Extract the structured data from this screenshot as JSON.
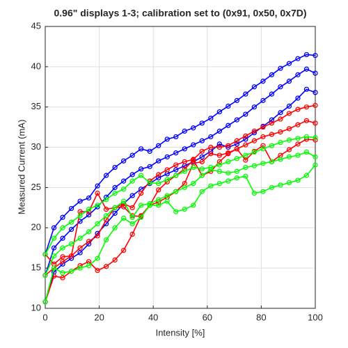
{
  "chart_data": {
    "type": "line",
    "title": "0.96\" displays 1-3; calibration set to (0x91, 0x50, 0x7D)",
    "xlabel": "Intensity [%]",
    "ylabel": "Measured Current (mA)",
    "x": [
      0,
      3.23,
      6.45,
      9.68,
      12.9,
      16.13,
      19.35,
      22.58,
      25.81,
      29.03,
      32.26,
      35.48,
      38.71,
      41.94,
      45.16,
      48.39,
      51.61,
      54.84,
      58.06,
      61.29,
      64.52,
      67.74,
      70.97,
      74.19,
      77.42,
      80.65,
      83.87,
      87.1,
      90.32,
      93.55,
      96.77,
      100
    ],
    "xlim": [
      0,
      100
    ],
    "xticks": [
      0,
      20,
      40,
      60,
      80,
      100
    ],
    "ylim": [
      10,
      45
    ],
    "yticks": [
      10,
      15,
      20,
      25,
      30,
      35,
      40,
      45
    ],
    "grid": true,
    "series": [
      {
        "color": "#0000ff",
        "values": [
          16.7,
          20,
          21.3,
          22.4,
          23.3,
          23.7,
          25.2,
          26.5,
          27.5,
          28.3,
          29.0,
          29.8,
          29.5,
          30.2,
          31.0,
          31.3,
          32.0,
          32.4,
          33.0,
          33.6,
          34.4,
          35.1,
          35.8,
          36.6,
          37.5,
          38.2,
          39.0,
          39.8,
          40.4,
          41.0,
          41.5,
          41.4
        ]
      },
      {
        "color": "#0000ff",
        "values": [
          14.1,
          17.5,
          18.7,
          19.8,
          20.8,
          21.6,
          22.6,
          23.8,
          25.0,
          25.8,
          26.6,
          27.3,
          27.6,
          28.3,
          28.8,
          29.3,
          29.8,
          30.3,
          30.8,
          31.3,
          32.0,
          32.7,
          33.4,
          34.1,
          35.0,
          35.8,
          36.6,
          37.5,
          38.2,
          39.0,
          39.7,
          39.2
        ]
      },
      {
        "color": "#0000ff",
        "values": [
          10.8,
          14.5,
          15.5,
          16.2,
          16.9,
          18.0,
          19.3,
          20.5,
          21.8,
          23.0,
          24.0,
          24.8,
          25.5,
          26.2,
          26.7,
          27.2,
          27.7,
          28.2,
          28.8,
          29.5,
          30.4,
          30.0,
          30.4,
          31.0,
          31.8,
          32.6,
          33.4,
          34.3,
          35.1,
          36.1,
          37.2,
          36.8
        ]
      },
      {
        "color": "#ff0000",
        "values": [
          14.1,
          15.0,
          15.8,
          16.5,
          17.5,
          18.3,
          19.0,
          21.0,
          22.5,
          23.0,
          22.5,
          24.3,
          25.8,
          26.6,
          27.2,
          27.8,
          28.2,
          28.5,
          29.5,
          30.0,
          30.0,
          30.2,
          30.8,
          31.4,
          32.0,
          32.5,
          33.0,
          33.5,
          34.2,
          34.7,
          35.0,
          35.2
        ]
      },
      {
        "color": "#ff0000",
        "values": [
          16.7,
          15.5,
          16.4,
          16.5,
          22.0,
          22.0,
          24.3,
          22.3,
          22.5,
          22.6,
          21.5,
          21.4,
          22.8,
          24.7,
          25.7,
          26.5,
          27.3,
          28.4,
          26.5,
          27.0,
          28.2,
          29.2,
          29.8,
          30.3,
          30.8,
          31.3,
          31.6,
          31.9,
          32.3,
          32.8,
          33.3,
          33.0
        ]
      },
      {
        "color": "#ff0000",
        "values": [
          10.8,
          14.0,
          13.8,
          14.6,
          15.3,
          15.8,
          14.7,
          15.2,
          16.0,
          17.2,
          19.2,
          21.5,
          22.8,
          23.2,
          23.8,
          24.5,
          25.5,
          28.0,
          28.2,
          29.2,
          29.0,
          29.3,
          29.8,
          28.4,
          29.5,
          30.2,
          28.2,
          29.0,
          29.7,
          30.4,
          31.0,
          30.9
        ]
      },
      {
        "color": "#00ff00",
        "values": [
          16.7,
          18.7,
          20.0,
          20.7,
          21.5,
          22.3,
          22.8,
          23.5,
          24.3,
          24.8,
          25.8,
          26.5,
          25.6,
          25.5,
          26.0,
          26.5,
          27.0,
          27.5,
          27.3,
          27.5,
          27.8,
          28.2,
          28.6,
          29.0,
          29.4,
          29.8,
          30.2,
          30.6,
          30.9,
          31.1,
          31.3,
          31.2
        ]
      },
      {
        "color": "#00ff00",
        "values": [
          14.1,
          16.5,
          17.5,
          18.0,
          18.7,
          19.5,
          20.5,
          21.5,
          22.5,
          23.3,
          21.3,
          22.8,
          23.0,
          23.5,
          24.0,
          24.5,
          25.0,
          25.5,
          26.5,
          27.2,
          27.0,
          26.8,
          27.0,
          27.5,
          27.7,
          28.0,
          28.2,
          28.5,
          28.8,
          29.0,
          29.4,
          28.8
        ]
      },
      {
        "color": "#00ff00",
        "values": [
          10.8,
          15.0,
          14.4,
          14.6,
          15.0,
          15.3,
          16.2,
          18.5,
          20.0,
          21.2,
          20.5,
          21.3,
          22.8,
          22.8,
          23.3,
          22.0,
          22.3,
          22.8,
          24.5,
          25.2,
          25.5,
          25.8,
          26.2,
          26.4,
          24.3,
          24.5,
          25.0,
          25.3,
          25.6,
          25.9,
          26.5,
          27.8
        ]
      }
    ]
  }
}
